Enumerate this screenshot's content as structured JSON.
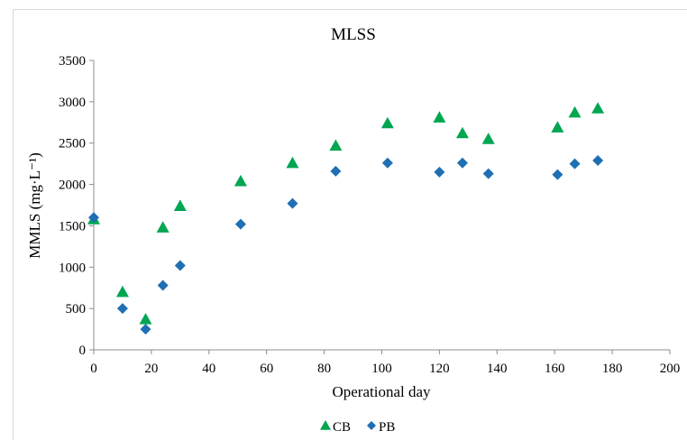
{
  "chart_data": {
    "type": "scatter",
    "title": "MLSS",
    "xlabel": "Operational day",
    "ylabel": "MMLS (mg·L⁻¹)",
    "xlim": [
      0,
      200
    ],
    "ylim": [
      0,
      3500
    ],
    "xticks": [
      0,
      20,
      40,
      60,
      80,
      100,
      120,
      140,
      160,
      180,
      200
    ],
    "yticks": [
      0,
      500,
      1000,
      1500,
      2000,
      2500,
      3000,
      3500
    ],
    "grid": false,
    "legend_position": "bottom",
    "series": [
      {
        "name": "CB",
        "marker": "triangle",
        "color": "#00a651",
        "x": [
          0,
          10,
          18,
          24,
          30,
          51,
          69,
          84,
          102,
          120,
          128,
          137,
          161,
          167,
          175
        ],
        "y": [
          1580,
          700,
          370,
          1480,
          1740,
          2040,
          2260,
          2470,
          2740,
          2810,
          2620,
          2550,
          2690,
          2870,
          2920
        ]
      },
      {
        "name": "PB",
        "marker": "diamond",
        "color": "#1f6fb4",
        "x": [
          0,
          10,
          18,
          24,
          30,
          51,
          69,
          84,
          102,
          120,
          128,
          137,
          161,
          167,
          175
        ],
        "y": [
          1600,
          500,
          250,
          780,
          1020,
          1520,
          1770,
          2160,
          2260,
          2150,
          2260,
          2130,
          2120,
          2250,
          2290
        ]
      }
    ]
  }
}
